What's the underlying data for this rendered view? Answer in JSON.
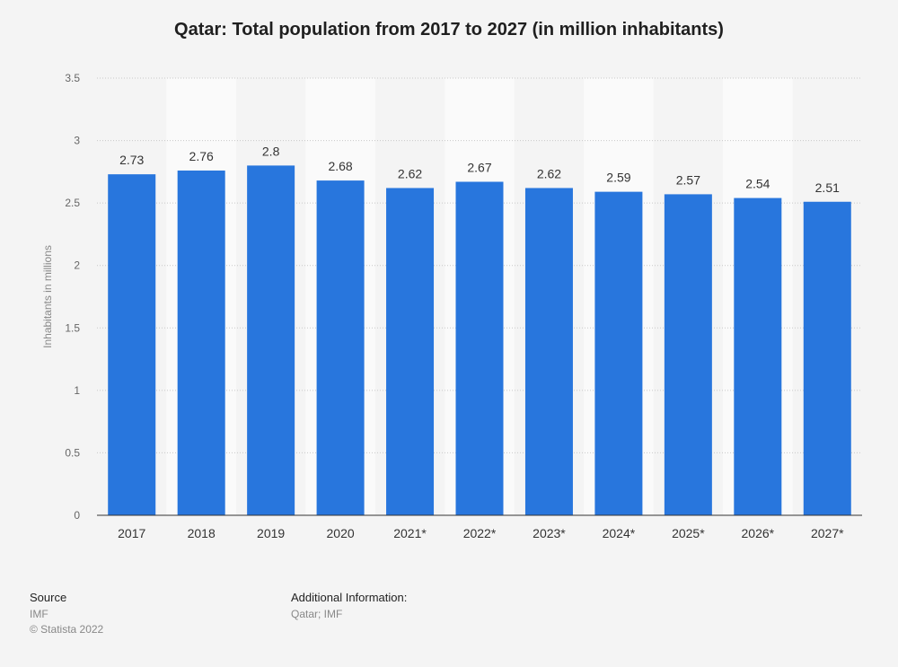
{
  "chart_data": {
    "type": "bar",
    "title": "Qatar: Total population from 2017 to 2027 (in million inhabitants)",
    "xlabel": "",
    "ylabel": "Inhabitants in millions",
    "categories": [
      "2017",
      "2018",
      "2019",
      "2020",
      "2021*",
      "2022*",
      "2023*",
      "2024*",
      "2025*",
      "2026*",
      "2027*"
    ],
    "values": [
      2.73,
      2.76,
      2.8,
      2.68,
      2.62,
      2.67,
      2.62,
      2.59,
      2.57,
      2.54,
      2.51
    ],
    "value_labels": [
      "2.73",
      "2.76",
      "2.8",
      "2.68",
      "2.62",
      "2.67",
      "2.62",
      "2.59",
      "2.57",
      "2.54",
      "2.51"
    ],
    "ylim": [
      0,
      3.5
    ],
    "yticks": [
      "0",
      "0.5",
      "1",
      "1.5",
      "2",
      "2.5",
      "3",
      "3.5"
    ],
    "grid": true,
    "bar_color": "#2876dd"
  },
  "footer": {
    "source_heading": "Source",
    "source_value": "IMF",
    "copyright": "© Statista 2022",
    "info_heading": "Additional Information:",
    "info_value": "Qatar; IMF"
  }
}
